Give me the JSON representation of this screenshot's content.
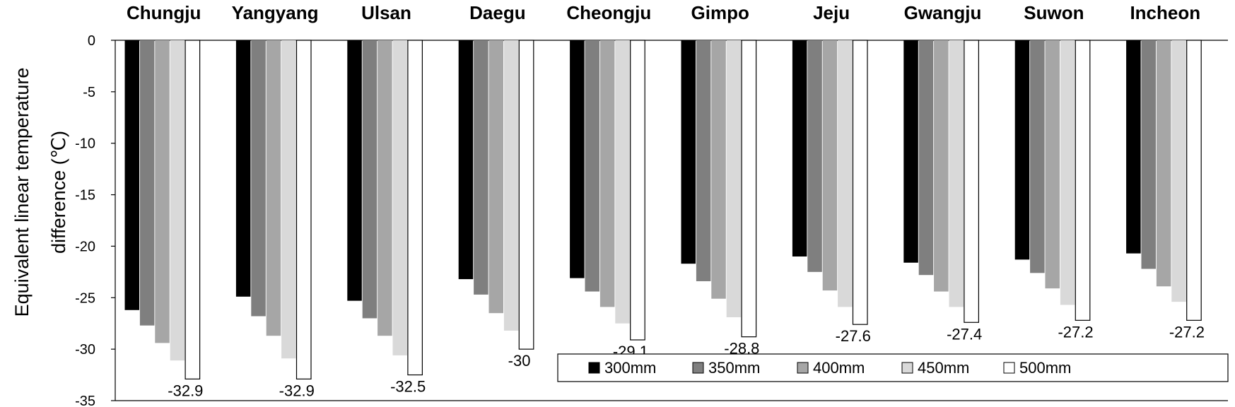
{
  "chart_data": {
    "type": "bar",
    "title": "",
    "xlabel": "",
    "ylabel_lines": [
      "Equivalent linear temperature",
      "difference (℃)"
    ],
    "categories": [
      "Chungju",
      "Yangyang",
      "Ulsan",
      "Daegu",
      "Cheongju",
      "Gimpo",
      "Jeju",
      "Gwangju",
      "Suwon",
      "Incheon"
    ],
    "ylim": [
      -35,
      0
    ],
    "yticks": [
      0,
      -5,
      -10,
      -15,
      -20,
      -25,
      -30,
      -35
    ],
    "grid": false,
    "legend_position": "bottom-right",
    "series": [
      {
        "name": "300mm",
        "color": "#000000",
        "values": [
          -26.2,
          -24.9,
          -25.3,
          -23.2,
          -23.1,
          -21.7,
          -21.0,
          -21.6,
          -21.3,
          -20.7
        ]
      },
      {
        "name": "350mm",
        "color": "#7f7f7f",
        "values": [
          -27.7,
          -26.8,
          -27.0,
          -24.7,
          -24.4,
          -23.4,
          -22.5,
          -22.8,
          -22.6,
          -22.2
        ]
      },
      {
        "name": "400mm",
        "color": "#a6a6a6",
        "values": [
          -29.4,
          -28.7,
          -28.7,
          -26.5,
          -25.9,
          -25.1,
          -24.3,
          -24.4,
          -24.1,
          -23.9
        ]
      },
      {
        "name": "450mm",
        "color": "#d9d9d9",
        "values": [
          -31.1,
          -30.9,
          -30.6,
          -28.2,
          -27.5,
          -26.9,
          -25.9,
          -25.9,
          -25.7,
          -25.4
        ]
      },
      {
        "name": "500mm",
        "color": "#ffffff",
        "values": [
          -32.9,
          -32.9,
          -32.5,
          -30.0,
          -29.1,
          -28.8,
          -27.6,
          -27.4,
          -27.2,
          -27.2
        ]
      }
    ],
    "data_labels": [
      "-32.9",
      "-32.9",
      "-32.5",
      "-30",
      "-29.1",
      "-28.8",
      "-27.6",
      "-27.4",
      "-27.2",
      "-27.2"
    ]
  }
}
